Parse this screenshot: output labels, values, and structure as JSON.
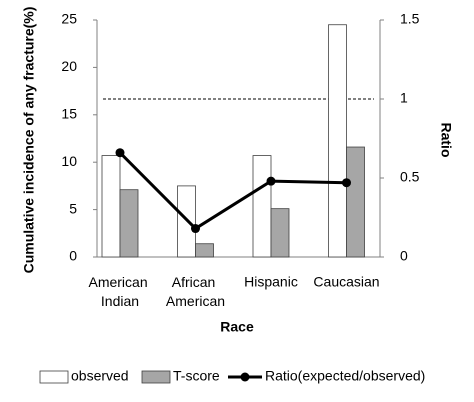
{
  "chart_data": {
    "type": "bar_line",
    "ylabel": "Cumulative incidence of any fracture(%)",
    "y2label": "Ratio",
    "xlabel": "Race",
    "categories": [
      "American Indian",
      "African American",
      "Hispanic",
      "Caucasian"
    ],
    "series": [
      {
        "name": "observed",
        "type": "bar",
        "color": "#ffffff",
        "values": [
          10.7,
          7.5,
          10.7,
          24.5
        ]
      },
      {
        "name": "T-score",
        "type": "bar",
        "color": "#a6a6a6",
        "values": [
          7.1,
          1.4,
          5.1,
          11.6
        ]
      },
      {
        "name": "Ratio(expected/observed)",
        "type": "line",
        "axis": "y2",
        "color": "#000000",
        "values": [
          0.66,
          0.18,
          0.48,
          0.47
        ]
      }
    ],
    "reference_line": {
      "axis": "y2",
      "value": 1
    },
    "ylim": [
      0,
      25
    ],
    "yticks": [
      0,
      5,
      10,
      15,
      20,
      25
    ],
    "y2lim": [
      0,
      1.5
    ],
    "y2ticks": [
      0,
      0.5,
      1,
      1.5
    ],
    "legend": "bottom"
  }
}
